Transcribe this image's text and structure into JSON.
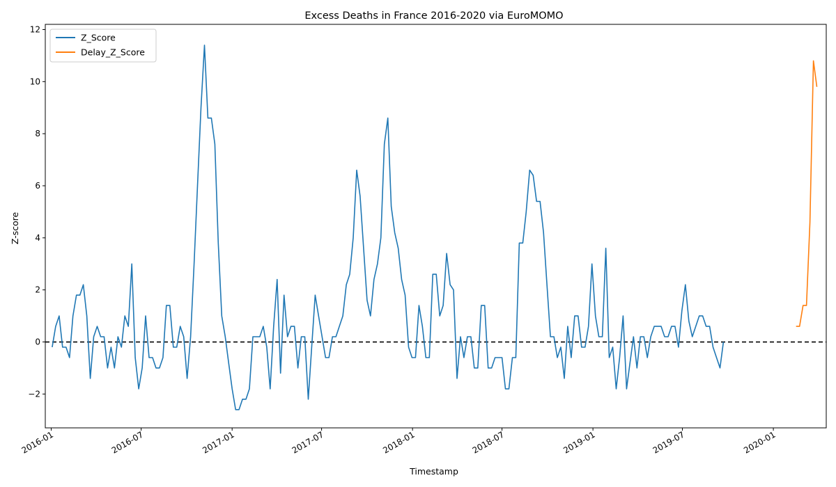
{
  "chart_data": {
    "type": "line",
    "title": "Excess Deaths in France 2016-2020 via EuroMOMO",
    "xlabel": "Timestamp",
    "ylabel": "Z-score",
    "xlim": [
      "2015-12-20",
      "2020-04-17"
    ],
    "ylim": [
      -3.3,
      12.2
    ],
    "x_ticks": [
      {
        "date": "2016-01-01",
        "label": "2016-01"
      },
      {
        "date": "2016-07-01",
        "label": "2016-07"
      },
      {
        "date": "2017-01-01",
        "label": "2017-01"
      },
      {
        "date": "2017-07-01",
        "label": "2017-07"
      },
      {
        "date": "2018-01-01",
        "label": "2018-01"
      },
      {
        "date": "2018-07-01",
        "label": "2018-07"
      },
      {
        "date": "2019-01-01",
        "label": "2019-01"
      },
      {
        "date": "2019-07-01",
        "label": "2019-07"
      },
      {
        "date": "2020-01-01",
        "label": "2020-01"
      }
    ],
    "y_ticks": [
      {
        "value": -2,
        "label": "−2"
      },
      {
        "value": 0,
        "label": "0"
      },
      {
        "value": 2,
        "label": "2"
      },
      {
        "value": 4,
        "label": "4"
      },
      {
        "value": 6,
        "label": "6"
      },
      {
        "value": 8,
        "label": "8"
      },
      {
        "value": 10,
        "label": "10"
      },
      {
        "value": 12,
        "label": "12"
      }
    ],
    "reference_line": {
      "y": 0,
      "color": "#000000",
      "style": "dashed"
    },
    "legend": {
      "placement": "top-left"
    },
    "series": [
      {
        "name": "Z_Score",
        "color": "#1f77b4",
        "points": [
          [
            "2016-01-03",
            -0.2
          ],
          [
            "2016-01-10",
            0.6
          ],
          [
            "2016-01-17",
            1.0
          ],
          [
            "2016-01-24",
            -0.2
          ],
          [
            "2016-01-31",
            -0.2
          ],
          [
            "2016-02-07",
            -0.6
          ],
          [
            "2016-02-14",
            1.0
          ],
          [
            "2016-02-21",
            1.8
          ],
          [
            "2016-02-28",
            1.8
          ],
          [
            "2016-03-06",
            2.2
          ],
          [
            "2016-03-13",
            1.0
          ],
          [
            "2016-03-20",
            -1.4
          ],
          [
            "2016-03-27",
            0.2
          ],
          [
            "2016-04-03",
            0.6
          ],
          [
            "2016-04-10",
            0.2
          ],
          [
            "2016-04-17",
            0.2
          ],
          [
            "2016-04-24",
            -1.0
          ],
          [
            "2016-05-01",
            -0.2
          ],
          [
            "2016-05-08",
            -1.0
          ],
          [
            "2016-05-15",
            0.2
          ],
          [
            "2016-05-22",
            -0.2
          ],
          [
            "2016-05-29",
            1.0
          ],
          [
            "2016-06-05",
            0.6
          ],
          [
            "2016-06-12",
            3.0
          ],
          [
            "2016-06-19",
            -0.6
          ],
          [
            "2016-06-26",
            -1.8
          ],
          [
            "2016-07-03",
            -1.0
          ],
          [
            "2016-07-10",
            1.0
          ],
          [
            "2016-07-17",
            -0.6
          ],
          [
            "2016-07-24",
            -0.6
          ],
          [
            "2016-07-31",
            -1.0
          ],
          [
            "2016-08-07",
            -1.0
          ],
          [
            "2016-08-14",
            -0.6
          ],
          [
            "2016-08-21",
            1.4
          ],
          [
            "2016-08-28",
            1.4
          ],
          [
            "2016-09-04",
            -0.2
          ],
          [
            "2016-09-11",
            -0.2
          ],
          [
            "2016-09-18",
            0.6
          ],
          [
            "2016-09-25",
            0.2
          ],
          [
            "2016-10-02",
            -1.4
          ],
          [
            "2016-10-09",
            0.2
          ],
          [
            "2016-10-16",
            3.0
          ],
          [
            "2016-10-23",
            6.0
          ],
          [
            "2016-10-30",
            9.0
          ],
          [
            "2016-11-06",
            11.4
          ],
          [
            "2016-11-13",
            8.6
          ],
          [
            "2016-11-20",
            8.6
          ],
          [
            "2016-11-27",
            7.6
          ],
          [
            "2016-12-04",
            3.8
          ],
          [
            "2016-12-11",
            1.0
          ],
          [
            "2016-12-18",
            0.2
          ],
          [
            "2016-12-25",
            -0.8
          ],
          [
            "2017-01-01",
            -1.8
          ],
          [
            "2017-01-08",
            -2.6
          ],
          [
            "2017-01-15",
            -2.6
          ],
          [
            "2017-01-22",
            -2.2
          ],
          [
            "2017-01-29",
            -2.2
          ],
          [
            "2017-02-05",
            -1.8
          ],
          [
            "2017-02-12",
            0.2
          ],
          [
            "2017-02-19",
            0.2
          ],
          [
            "2017-02-26",
            0.2
          ],
          [
            "2017-03-05",
            0.6
          ],
          [
            "2017-03-12",
            -0.2
          ],
          [
            "2017-03-19",
            -1.8
          ],
          [
            "2017-03-26",
            0.6
          ],
          [
            "2017-04-02",
            2.4
          ],
          [
            "2017-04-09",
            -1.2
          ],
          [
            "2017-04-16",
            1.8
          ],
          [
            "2017-04-23",
            0.2
          ],
          [
            "2017-04-30",
            0.6
          ],
          [
            "2017-05-07",
            0.6
          ],
          [
            "2017-05-14",
            -1.0
          ],
          [
            "2017-05-21",
            0.2
          ],
          [
            "2017-05-28",
            0.2
          ],
          [
            "2017-06-04",
            -2.2
          ],
          [
            "2017-06-11",
            -0.2
          ],
          [
            "2017-06-18",
            1.8
          ],
          [
            "2017-06-25",
            1.0
          ],
          [
            "2017-07-02",
            0.2
          ],
          [
            "2017-07-09",
            -0.6
          ],
          [
            "2017-07-16",
            -0.6
          ],
          [
            "2017-07-23",
            0.2
          ],
          [
            "2017-07-30",
            0.2
          ],
          [
            "2017-08-06",
            0.6
          ],
          [
            "2017-08-13",
            1.0
          ],
          [
            "2017-08-20",
            2.2
          ],
          [
            "2017-08-27",
            2.6
          ],
          [
            "2017-09-03",
            4.0
          ],
          [
            "2017-09-10",
            6.6
          ],
          [
            "2017-09-17",
            5.6
          ],
          [
            "2017-09-24",
            3.6
          ],
          [
            "2017-10-01",
            1.6
          ],
          [
            "2017-10-08",
            1.0
          ],
          [
            "2017-10-15",
            2.4
          ],
          [
            "2017-10-22",
            3.0
          ],
          [
            "2017-10-29",
            4.0
          ],
          [
            "2017-11-05",
            7.6
          ],
          [
            "2017-11-12",
            8.6
          ],
          [
            "2017-11-19",
            5.2
          ],
          [
            "2017-11-26",
            4.2
          ],
          [
            "2017-12-03",
            3.6
          ],
          [
            "2017-12-10",
            2.4
          ],
          [
            "2017-12-17",
            1.8
          ],
          [
            "2017-12-24",
            -0.2
          ],
          [
            "2017-12-31",
            -0.6
          ],
          [
            "2018-01-07",
            -0.6
          ],
          [
            "2018-01-14",
            1.4
          ],
          [
            "2018-01-21",
            0.6
          ],
          [
            "2018-01-28",
            -0.6
          ],
          [
            "2018-02-04",
            -0.6
          ],
          [
            "2018-02-11",
            2.6
          ],
          [
            "2018-02-18",
            2.6
          ],
          [
            "2018-02-25",
            1.0
          ],
          [
            "2018-03-04",
            1.4
          ],
          [
            "2018-03-11",
            3.4
          ],
          [
            "2018-03-18",
            2.2
          ],
          [
            "2018-03-25",
            2.0
          ],
          [
            "2018-04-01",
            -1.4
          ],
          [
            "2018-04-08",
            0.2
          ],
          [
            "2018-04-15",
            -0.6
          ],
          [
            "2018-04-22",
            0.2
          ],
          [
            "2018-04-29",
            0.2
          ],
          [
            "2018-05-06",
            -1.0
          ],
          [
            "2018-05-13",
            -1.0
          ],
          [
            "2018-05-20",
            1.4
          ],
          [
            "2018-05-27",
            1.4
          ],
          [
            "2018-06-03",
            -1.0
          ],
          [
            "2018-06-10",
            -1.0
          ],
          [
            "2018-06-17",
            -0.6
          ],
          [
            "2018-06-24",
            -0.6
          ],
          [
            "2018-07-01",
            -0.6
          ],
          [
            "2018-07-08",
            -1.8
          ],
          [
            "2018-07-15",
            -1.8
          ],
          [
            "2018-07-22",
            -0.6
          ],
          [
            "2018-07-29",
            -0.6
          ],
          [
            "2018-08-05",
            3.8
          ],
          [
            "2018-08-12",
            3.8
          ],
          [
            "2018-08-19",
            5.0
          ],
          [
            "2018-08-26",
            6.6
          ],
          [
            "2018-09-02",
            6.4
          ],
          [
            "2018-09-09",
            5.4
          ],
          [
            "2018-09-16",
            5.4
          ],
          [
            "2018-09-23",
            4.2
          ],
          [
            "2018-09-30",
            2.2
          ],
          [
            "2018-10-07",
            0.2
          ],
          [
            "2018-10-14",
            0.2
          ],
          [
            "2018-10-21",
            -0.6
          ],
          [
            "2018-10-28",
            -0.2
          ],
          [
            "2018-11-04",
            -1.4
          ],
          [
            "2018-11-11",
            0.6
          ],
          [
            "2018-11-18",
            -0.6
          ],
          [
            "2018-11-25",
            1.0
          ],
          [
            "2018-12-02",
            1.0
          ],
          [
            "2018-12-09",
            -0.2
          ],
          [
            "2018-12-16",
            -0.2
          ],
          [
            "2018-12-23",
            0.6
          ],
          [
            "2018-12-30",
            3.0
          ],
          [
            "2019-01-06",
            1.0
          ],
          [
            "2019-01-13",
            0.2
          ],
          [
            "2019-01-20",
            0.2
          ],
          [
            "2019-01-27",
            3.6
          ],
          [
            "2019-02-03",
            -0.6
          ],
          [
            "2019-02-10",
            -0.2
          ],
          [
            "2019-02-17",
            -1.8
          ],
          [
            "2019-02-24",
            -0.6
          ],
          [
            "2019-03-03",
            1.0
          ],
          [
            "2019-03-10",
            -1.8
          ],
          [
            "2019-03-17",
            -0.8
          ],
          [
            "2019-03-24",
            0.2
          ],
          [
            "2019-03-31",
            -1.0
          ],
          [
            "2019-04-07",
            0.2
          ],
          [
            "2019-04-14",
            0.2
          ],
          [
            "2019-04-21",
            -0.6
          ],
          [
            "2019-04-28",
            0.2
          ],
          [
            "2019-05-05",
            0.6
          ],
          [
            "2019-05-12",
            0.6
          ],
          [
            "2019-05-19",
            0.6
          ],
          [
            "2019-05-26",
            0.2
          ],
          [
            "2019-06-02",
            0.2
          ],
          [
            "2019-06-09",
            0.6
          ],
          [
            "2019-06-16",
            0.6
          ],
          [
            "2019-06-23",
            -0.2
          ],
          [
            "2019-06-30",
            1.2
          ],
          [
            "2019-07-07",
            2.2
          ],
          [
            "2019-07-14",
            0.8
          ],
          [
            "2019-07-21",
            0.2
          ],
          [
            "2019-07-28",
            0.6
          ],
          [
            "2019-08-04",
            1.0
          ],
          [
            "2019-08-11",
            1.0
          ],
          [
            "2019-08-18",
            0.6
          ],
          [
            "2019-08-25",
            0.6
          ],
          [
            "2019-09-01",
            -0.2
          ],
          [
            "2019-09-08",
            -0.6
          ],
          [
            "2019-09-15",
            -1.0
          ],
          [
            "2019-09-22",
            0.0
          ]
        ]
      },
      {
        "name": "Delay_Z_Score",
        "color": "#ff7f0e",
        "points": [
          [
            "2020-02-16",
            0.6
          ],
          [
            "2020-02-23",
            0.6
          ],
          [
            "2020-03-01",
            1.4
          ],
          [
            "2020-03-08",
            1.4
          ],
          [
            "2020-03-15",
            4.6
          ],
          [
            "2020-03-22",
            10.8
          ],
          [
            "2020-03-29",
            9.8
          ]
        ]
      }
    ]
  }
}
